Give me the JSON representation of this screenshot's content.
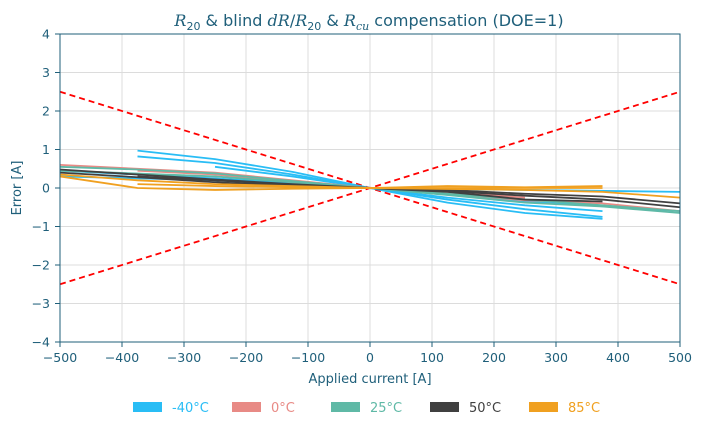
{
  "chart_data": {
    "type": "line",
    "title": {
      "r20": "R",
      "r20_sub": "20",
      "mid1": " & blind ",
      "dr": "dR",
      "slash": "/",
      "r": "R",
      "r_sub": "20",
      "mid2": " & ",
      "rcu": "R",
      "rcu_sub": "cu",
      "tail": " compensation (DOE=1)"
    },
    "xlabel": "Applied current [A]",
    "ylabel": "Error [A]",
    "xlim": [
      -500,
      500
    ],
    "ylim": [
      -4,
      4
    ],
    "x_ticks": [
      "−500",
      "−400",
      "−300",
      "−200",
      "−100",
      "0",
      "100",
      "200",
      "300",
      "400",
      "500"
    ],
    "y_ticks": [
      "−4",
      "−3",
      "−2",
      "−1",
      "0",
      "1",
      "2",
      "3",
      "4"
    ],
    "grid": true,
    "legend_position": "bottom",
    "limit_lines": {
      "color": "#ff0000",
      "style": "dashed",
      "lines": [
        {
          "x": [
            -500,
            500
          ],
          "y": [
            2.5,
            -2.5
          ]
        },
        {
          "x": [
            -500,
            500
          ],
          "y": [
            -2.5,
            2.5
          ]
        }
      ]
    },
    "series": [
      {
        "name": "-40°C",
        "color": "#29bdf5",
        "lines": [
          {
            "x": [
              -375,
              -250,
              -125,
              0,
              125,
              250,
              375
            ],
            "y": [
              0.97,
              0.75,
              0.42,
              0.0,
              -0.38,
              -0.65,
              -0.8
            ]
          },
          {
            "x": [
              -375,
              -250,
              -125,
              0,
              125,
              250,
              375
            ],
            "y": [
              0.82,
              0.65,
              0.35,
              0.0,
              -0.3,
              -0.55,
              -0.75
            ]
          },
          {
            "x": [
              -250,
              -125,
              0,
              125,
              250,
              375
            ],
            "y": [
              0.55,
              0.3,
              0.0,
              -0.25,
              -0.45,
              -0.6
            ]
          },
          {
            "x": [
              -500,
              -250,
              0,
              250,
              500
            ],
            "y": [
              0.3,
              0.2,
              0.0,
              -0.05,
              -0.1
            ]
          },
          {
            "x": [
              -500,
              -250,
              0,
              250,
              500
            ],
            "y": [
              0.45,
              0.25,
              0.0,
              -0.35,
              -0.6
            ]
          }
        ]
      },
      {
        "name": "0°C",
        "color": "#e88a85",
        "lines": [
          {
            "x": [
              -500,
              -375,
              -250,
              -125,
              0,
              125,
              250,
              375,
              500
            ],
            "y": [
              0.6,
              0.5,
              0.4,
              0.2,
              0.0,
              -0.15,
              -0.32,
              -0.4,
              -0.6
            ]
          },
          {
            "x": [
              -375,
              -250,
              -125,
              0,
              125,
              250
            ],
            "y": [
              0.45,
              0.35,
              0.15,
              0.0,
              -0.1,
              -0.25
            ]
          }
        ]
      },
      {
        "name": "25°C",
        "color": "#5fb9a6",
        "lines": [
          {
            "x": [
              -500,
              -375,
              -250,
              -125,
              0,
              125,
              250,
              375,
              500
            ],
            "y": [
              0.55,
              0.48,
              0.38,
              0.18,
              0.0,
              -0.18,
              -0.38,
              -0.48,
              -0.65
            ]
          },
          {
            "x": [
              -500,
              -250,
              0,
              250,
              500
            ],
            "y": [
              0.45,
              0.3,
              0.0,
              -0.3,
              -0.6
            ]
          }
        ]
      },
      {
        "name": "50°C",
        "color": "#404040",
        "lines": [
          {
            "x": [
              -500,
              -375,
              -250,
              -125,
              0,
              125,
              250,
              375,
              500
            ],
            "y": [
              0.48,
              0.35,
              0.22,
              0.1,
              0.0,
              -0.08,
              -0.2,
              -0.3,
              -0.5
            ]
          },
          {
            "x": [
              -500,
              -375,
              -250,
              -125,
              0,
              125,
              250,
              375,
              500
            ],
            "y": [
              0.4,
              0.28,
              0.15,
              0.05,
              0.0,
              -0.05,
              -0.15,
              -0.22,
              -0.4
            ]
          },
          {
            "x": [
              -375,
              -250,
              -125,
              0,
              125,
              250,
              375
            ],
            "y": [
              0.3,
              0.2,
              0.08,
              0.0,
              -0.1,
              -0.3,
              -0.35
            ]
          }
        ]
      },
      {
        "name": "85°C",
        "color": "#f0a020",
        "lines": [
          {
            "x": [
              -500,
              -375,
              -250,
              -125,
              0,
              125,
              250,
              375
            ],
            "y": [
              0.3,
              0.0,
              -0.05,
              -0.02,
              0.0,
              0.05,
              0.02,
              0.05
            ]
          },
          {
            "x": [
              -375,
              -250,
              -125,
              0,
              125,
              250,
              375
            ],
            "y": [
              0.1,
              0.05,
              0.02,
              0.0,
              0.0,
              0.0,
              0.0
            ]
          },
          {
            "x": [
              -500,
              -375,
              -250,
              0,
              250,
              375,
              500
            ],
            "y": [
              0.35,
              0.2,
              0.1,
              0.0,
              -0.05,
              -0.1,
              -0.25
            ]
          }
        ]
      }
    ]
  }
}
